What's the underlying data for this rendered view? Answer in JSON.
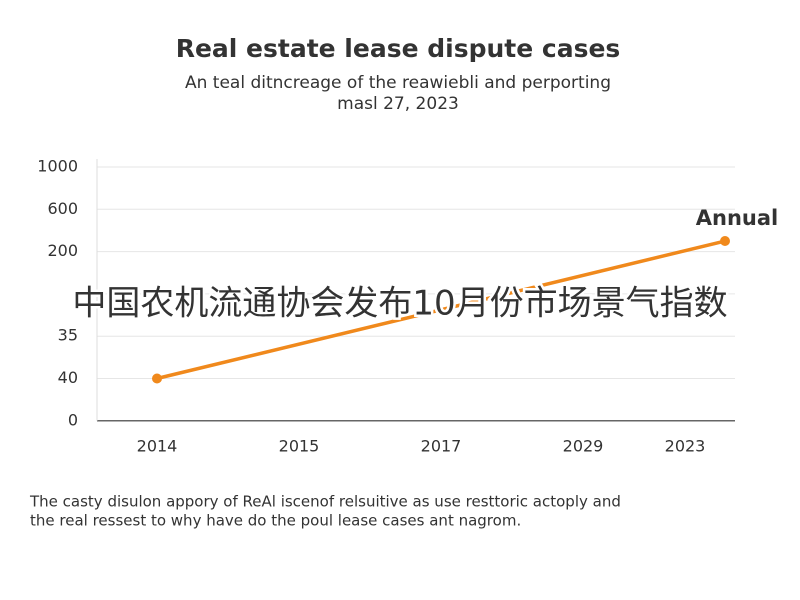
{
  "chart_data": {
    "type": "line",
    "title": "Real estate lease dispute cases",
    "subtitle": [
      "An teal ditncreage of the reawiebli and perporting",
      "masl 27, 2023"
    ],
    "categories": [
      "2014",
      "2015",
      "2017",
      "2029",
      "2023"
    ],
    "series": [
      {
        "name": "Annual",
        "color": "#f0891c",
        "values": [
          40,
          null,
          null,
          null,
          300
        ]
      }
    ],
    "yticks": [
      1000,
      600,
      200,
      null,
      35,
      40,
      0
    ],
    "grid": true,
    "overlay_text": "中国农机流通协会发布10月份市场景气指数",
    "caption": [
      "The casty disulon appory of ReAl iscenof relsuitive as use resttoric actoply and",
      "the real ressest to why have do the poul lease cases ant nagrom."
    ]
  }
}
